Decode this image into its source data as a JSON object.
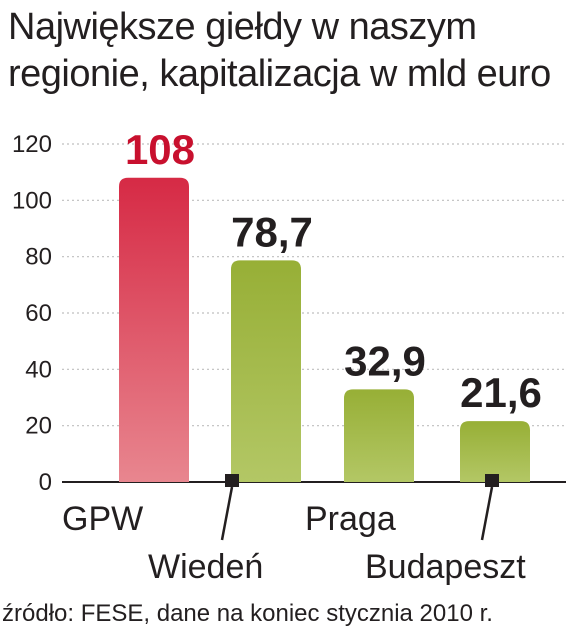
{
  "title_line1": "Największe giełdy w naszym",
  "title_line2": "regionie, kapitalizacja w mld euro",
  "source": "źródło: FESE, dane na koniec stycznia 2010 r.",
  "colors": {
    "highlight": "#d8304a",
    "highlight_value_label": "#c8102e",
    "others": "#9bb33a",
    "grid": "#bfbfbf",
    "text": "#231f20"
  },
  "chart_data": {
    "type": "bar",
    "categories": [
      "GPW",
      "Wiedeń",
      "Praga",
      "Budapeszt"
    ],
    "values": [
      108,
      78.7,
      32.9,
      21.6
    ],
    "value_labels": [
      "108",
      "78,7",
      "32,9",
      "21,6"
    ],
    "highlight_index": 0,
    "yticks": [
      "0",
      "20",
      "40",
      "60",
      "80",
      "100",
      "120"
    ],
    "ylim": [
      0,
      120
    ],
    "grid": true,
    "title": "Największe giełdy w naszym regionie, kapitalizacja w mld euro"
  }
}
